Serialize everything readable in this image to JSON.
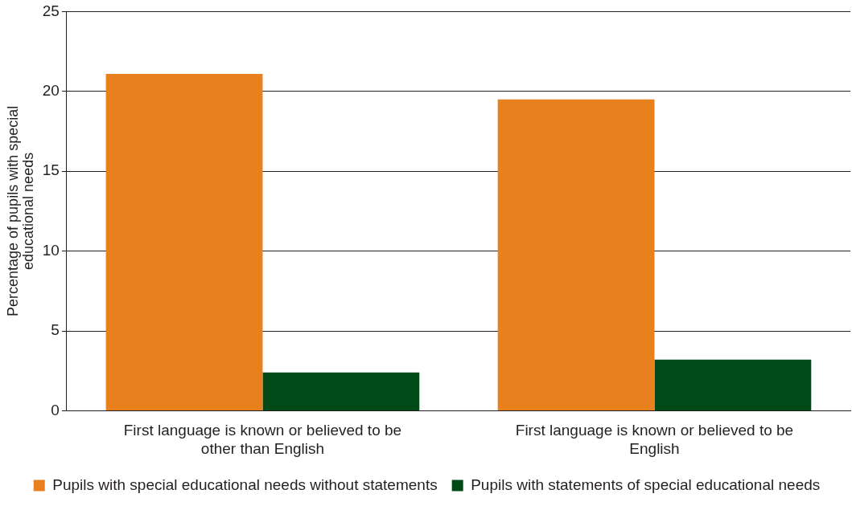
{
  "chart_data": {
    "type": "bar",
    "ylabel": "Percentage of pupils with special educational needs",
    "categories": [
      "First language is known or believed to be other than English",
      "First language is known or believed to be English"
    ],
    "series": [
      {
        "name": "Pupils with special educational needs without statements",
        "color": "#e8801e",
        "values": [
          21.1,
          19.5
        ]
      },
      {
        "name": "Pupils with statements of special educational needs",
        "color": "#004a17",
        "values": [
          2.4,
          3.2
        ]
      }
    ],
    "ylim": [
      0,
      25
    ],
    "yticks": [
      0,
      5,
      10,
      15,
      20,
      25
    ],
    "grid": "y",
    "legend": "bottom"
  }
}
